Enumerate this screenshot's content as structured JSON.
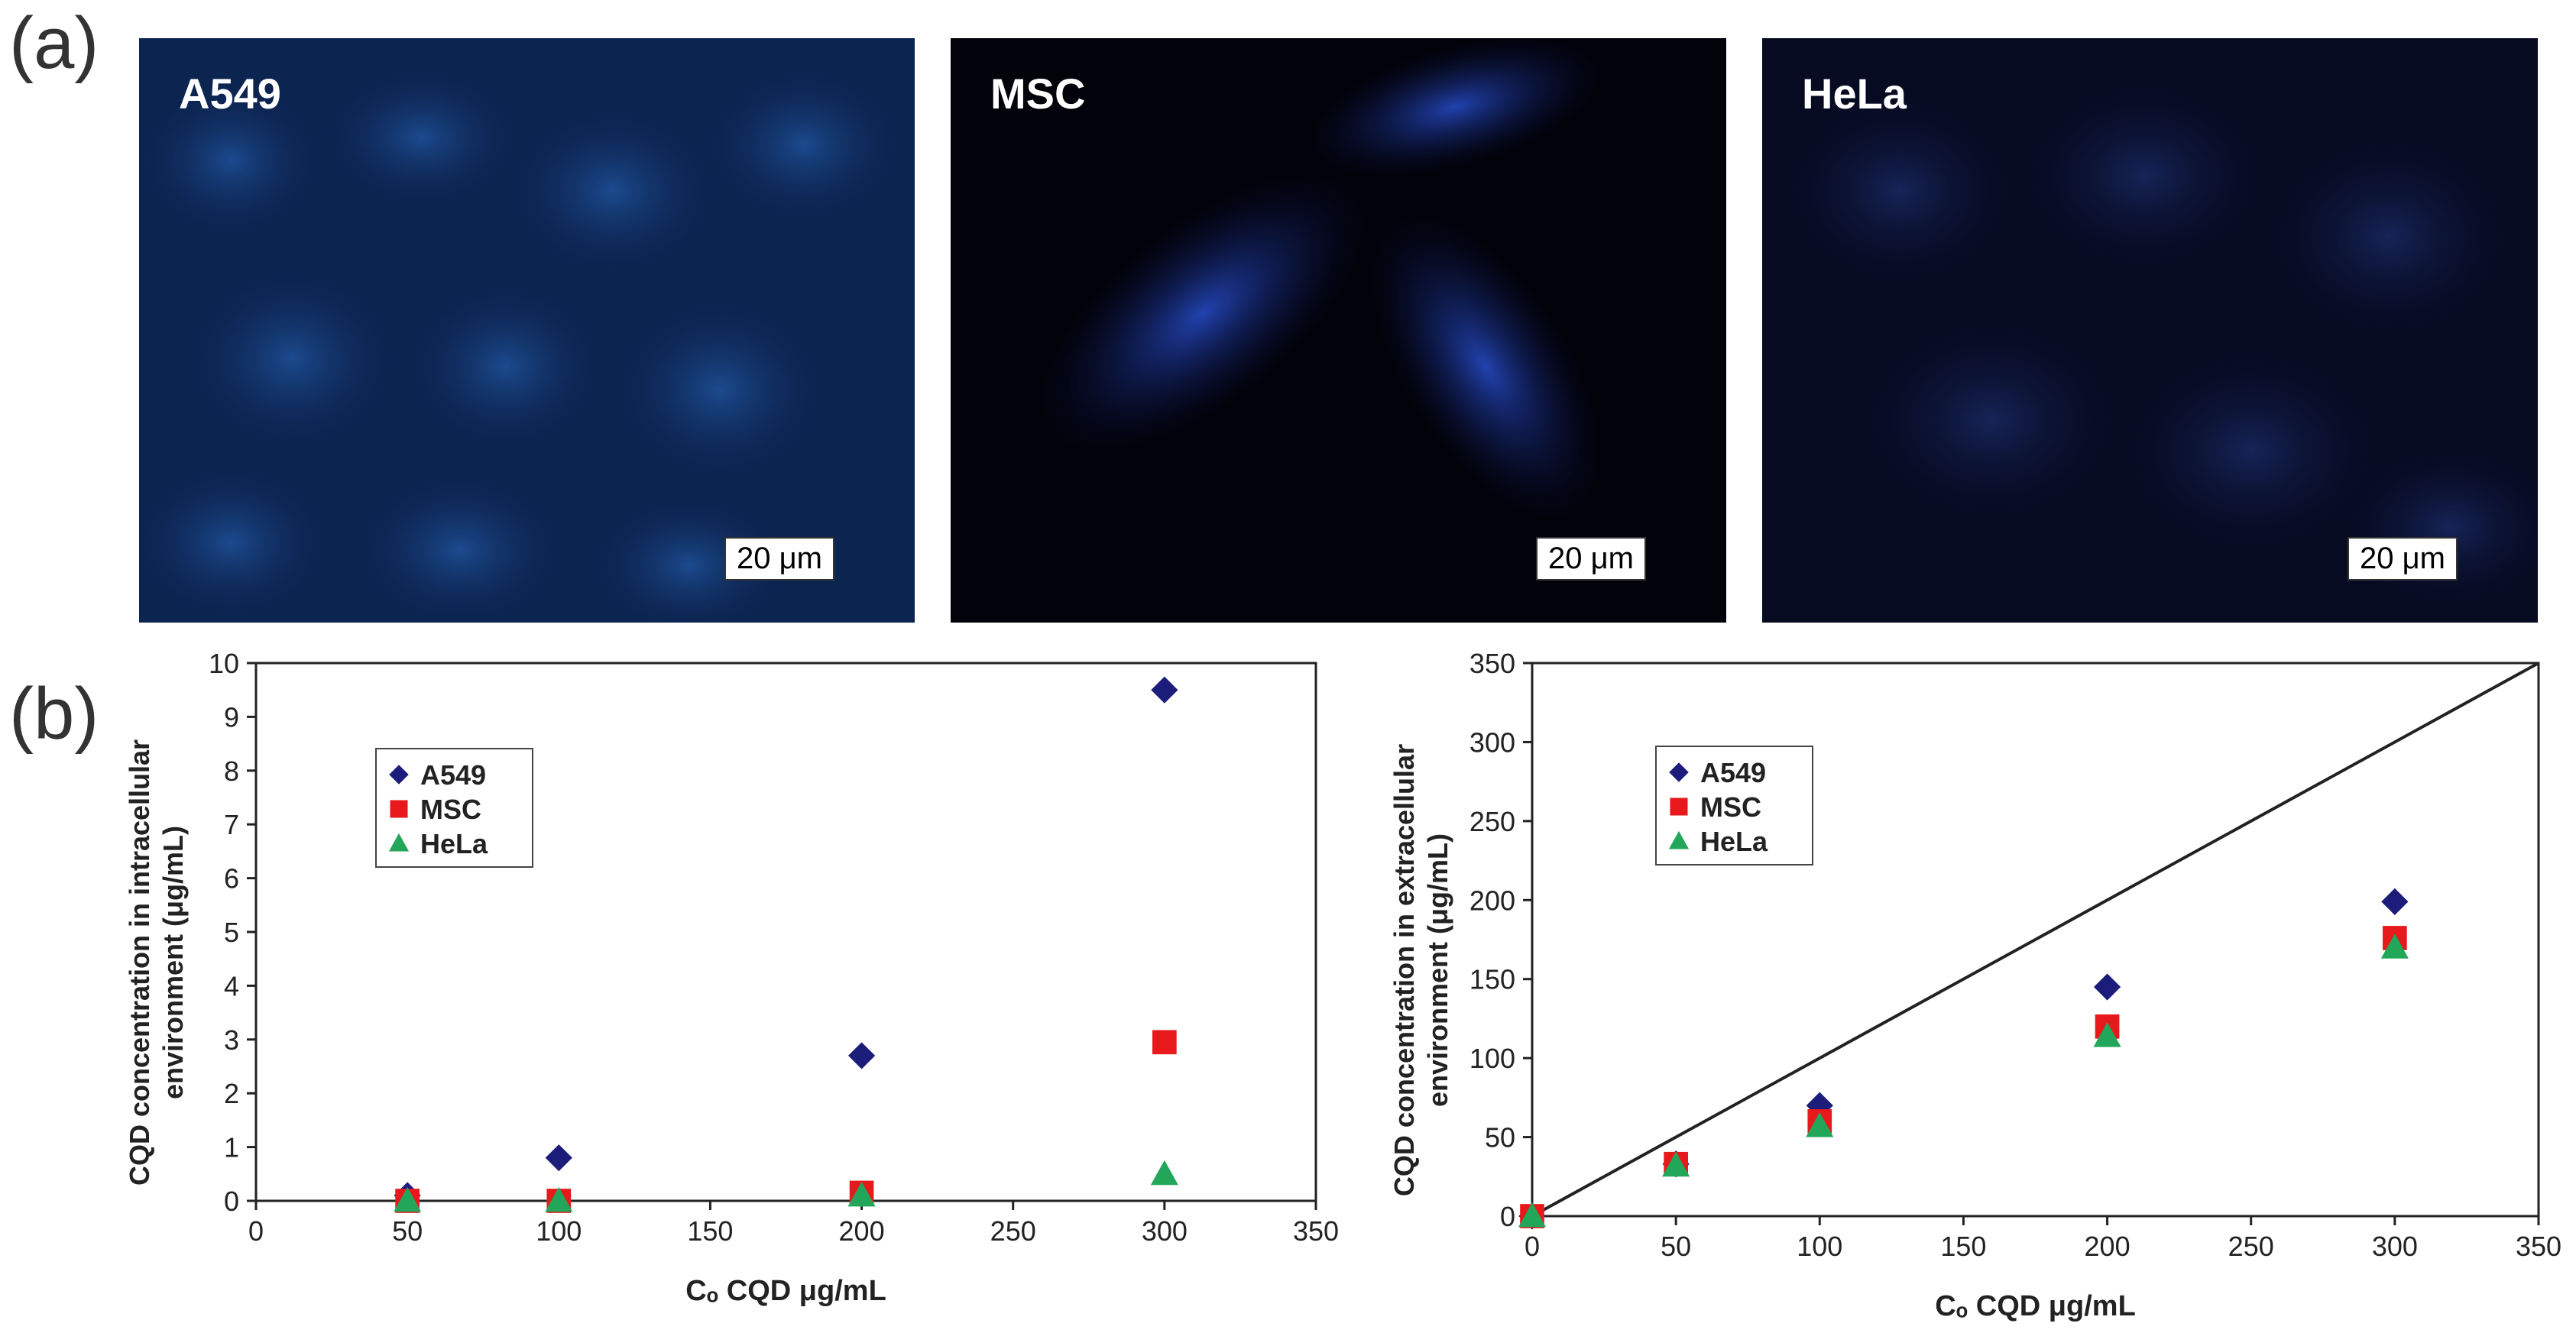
{
  "panel_labels": {
    "a": "(a)",
    "b": "(b)"
  },
  "micrographs": [
    {
      "label": "A549",
      "scale_bar": "20 μm"
    },
    {
      "label": "MSC",
      "scale_bar": "20 μm"
    },
    {
      "label": "HeLa",
      "scale_bar": "20 μm"
    }
  ],
  "chart_data": [
    {
      "type": "scatter",
      "xlabel": "Cₒ CQD μg/mL",
      "ylabel_lines": [
        "CQD concentration in intracellular",
        "environment (μg/mL)"
      ],
      "xlim": [
        0,
        350
      ],
      "ylim": [
        0,
        10
      ],
      "x_ticks": [
        0,
        50,
        100,
        150,
        200,
        250,
        300,
        350
      ],
      "y_ticks": [
        0,
        1,
        2,
        3,
        4,
        5,
        6,
        7,
        8,
        9,
        10
      ],
      "legend_position": "upper-left",
      "series": [
        {
          "name": "A549",
          "marker": "diamond",
          "color": "#1c1c7a",
          "x": [
            50,
            100,
            200,
            300
          ],
          "y": [
            0.1,
            0.8,
            2.7,
            9.5
          ]
        },
        {
          "name": "MSC",
          "marker": "square",
          "color": "#e8191b",
          "x": [
            50,
            100,
            200,
            300
          ],
          "y": [
            0.0,
            0.0,
            0.15,
            2.95
          ]
        },
        {
          "name": "HeLa",
          "marker": "triangle",
          "color": "#22a65a",
          "x": [
            50,
            100,
            200,
            300
          ],
          "y": [
            0.0,
            0.0,
            0.1,
            0.5
          ]
        }
      ]
    },
    {
      "type": "scatter",
      "xlabel": "Cₒ CQD μg/mL",
      "ylabel_lines": [
        "CQD concentration in extracellular",
        "environment (μg/mL)"
      ],
      "xlim": [
        0,
        350
      ],
      "ylim": [
        0,
        350
      ],
      "x_ticks": [
        0,
        50,
        100,
        150,
        200,
        250,
        300,
        350
      ],
      "y_ticks": [
        0,
        50,
        100,
        150,
        200,
        250,
        300,
        350
      ],
      "legend_position": "upper-left",
      "reference_line": {
        "x": [
          0,
          350
        ],
        "y": [
          0,
          350
        ],
        "color": "#222222"
      },
      "series": [
        {
          "name": "A549",
          "marker": "diamond",
          "color": "#1c1c7a",
          "x": [
            0,
            50,
            100,
            200,
            300
          ],
          "y": [
            0,
            33,
            70,
            145,
            199
          ]
        },
        {
          "name": "MSC",
          "marker": "square",
          "color": "#e8191b",
          "x": [
            0,
            50,
            100,
            200,
            300
          ],
          "y": [
            0,
            33,
            60,
            120,
            176
          ]
        },
        {
          "name": "HeLa",
          "marker": "triangle",
          "color": "#22a65a",
          "x": [
            0,
            50,
            100,
            200,
            300
          ],
          "y": [
            0,
            32,
            57,
            114,
            170
          ]
        }
      ]
    }
  ]
}
